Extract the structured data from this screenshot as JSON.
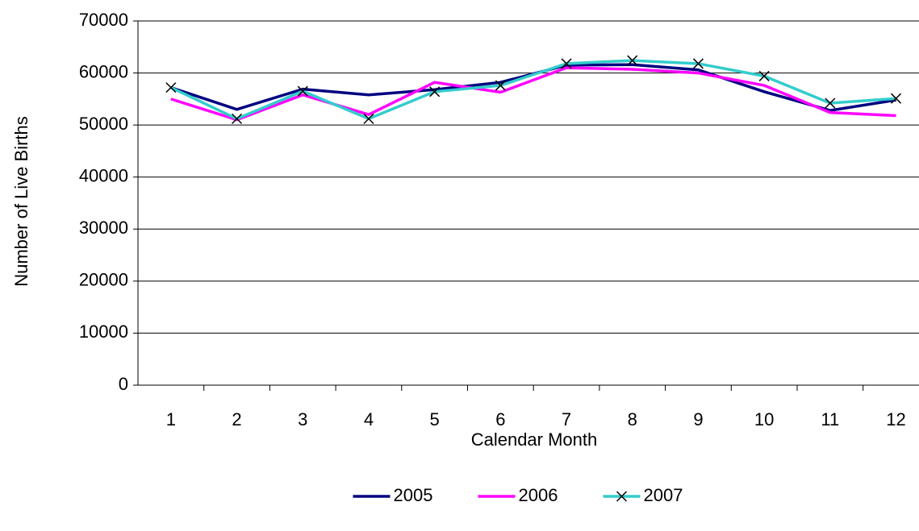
{
  "chart_data": {
    "type": "line",
    "x_label": "Calendar Month",
    "y_label": "Number of Live Births",
    "categories": [
      "1",
      "2",
      "3",
      "4",
      "5",
      "6",
      "7",
      "8",
      "9",
      "10",
      "11",
      "12"
    ],
    "series": [
      {
        "name": "2005",
        "color": "#000080",
        "values": [
          57200,
          53000,
          56900,
          55800,
          56800,
          58200,
          61500,
          61600,
          60600,
          56400,
          52800,
          54800
        ]
      },
      {
        "name": "2006",
        "color": "#ff00ff",
        "values": [
          55000,
          51000,
          55800,
          52000,
          58200,
          56300,
          61000,
          60700,
          60000,
          57600,
          52400,
          51800
        ]
      },
      {
        "name": "2007",
        "color": "#33cccc",
        "marker": "x",
        "values": [
          57200,
          51200,
          56500,
          51200,
          56400,
          57600,
          61800,
          62400,
          61800,
          59400,
          54200,
          55100
        ]
      }
    ],
    "ylim": [
      0,
      70000
    ],
    "yticks": [
      0,
      10000,
      20000,
      30000,
      40000,
      50000,
      60000,
      70000
    ],
    "grid": true,
    "legend": "bottom"
  }
}
